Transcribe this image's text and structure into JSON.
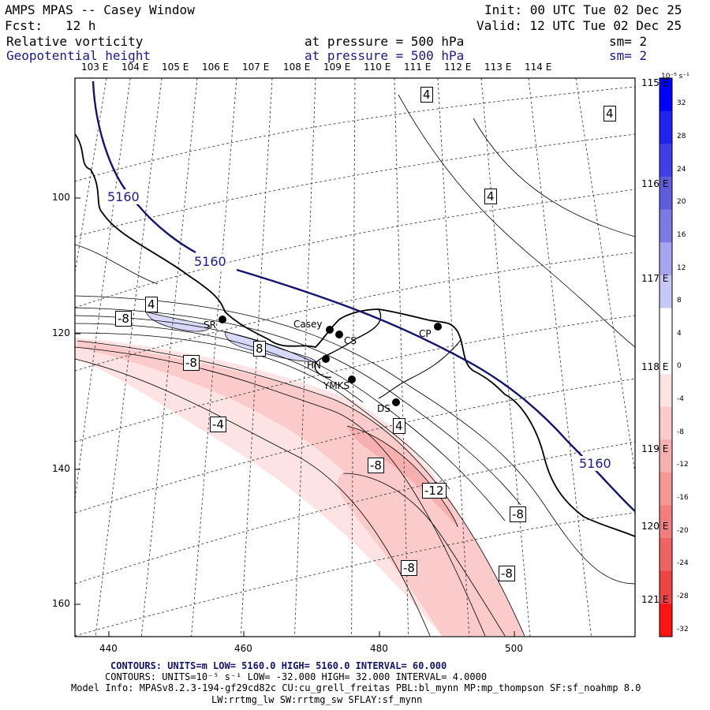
{
  "header": {
    "app_title": "AMPS MPAS -- Casey Window",
    "init": "Init: 00 UTC Tue 02 Dec 25",
    "fcst_label": "Fcst:",
    "fcst_value": "12 h",
    "valid": "Valid: 12 UTC Tue 02 Dec 25",
    "field1": "Relative vorticity",
    "field1_level": "at pressure =  500 hPa",
    "field1_sm": "sm= 2",
    "field2": "Geopotential height",
    "field2_level": "at pressure =  500 hPa",
    "field2_sm": "sm= 2"
  },
  "lon_top": [
    "103 E",
    "104 E",
    "105 E",
    "106 E",
    "107 E",
    "108 E",
    "109 E",
    "110 E",
    "111 E",
    "112 E",
    "113 E",
    "114 E"
  ],
  "lon_right": [
    "115 E",
    "116 E",
    "117 E",
    "118 E",
    "119 E",
    "120 E",
    "121 E"
  ],
  "y_ticks": [
    "100",
    "120",
    "140",
    "160"
  ],
  "x_ticks": [
    "440",
    "460",
    "480",
    "500"
  ],
  "stations": [
    "Casey",
    "CS",
    "CP",
    "SR",
    "HN",
    "YMKS",
    "DS"
  ],
  "contour_labels": {
    "height": [
      "5160",
      "5160",
      "5160"
    ],
    "vort": [
      "4",
      "4",
      "4",
      "4",
      "4",
      "-8",
      "8",
      "-8",
      "-4",
      "-8",
      "-12",
      "-8",
      "-8"
    ]
  },
  "colorbar": {
    "unit": "10⁻⁵ s⁻¹",
    "labels": [
      "32",
      "28",
      "24",
      "20",
      "16",
      "12",
      "8",
      "4",
      "0",
      "-4",
      "-8",
      "-12",
      "-16",
      "-20",
      "-24",
      "-28",
      "-32"
    ],
    "colors": [
      "#0000ff",
      "#2222f0",
      "#3f3fe6",
      "#5c5cdd",
      "#7a7ae2",
      "#a4a4ef",
      "#c8c8f6",
      "#ffffff",
      "#ffffff",
      "#fde3e3",
      "#fbcaca",
      "#f7b0b0",
      "#f59797",
      "#f27e7e",
      "#ef6363",
      "#ee4444",
      "#ff1414"
    ]
  },
  "footer": {
    "line1_contours": "CONTOURS:  UNITS=m  LOW=  5160.0       HIGH=  5160.0       INTERVAL=  60.000",
    "line2_contours": "CONTOURS:  UNITS=10⁻⁵ s⁻¹  LOW= -32.000       HIGH=  32.000      INTERVAL=   4.0000",
    "model_info": "Model Info: MPASv8.2.3-194-gf29cd82c CU:cu_grell_freitas PBL:bl_mynn MP:mp_thompson SF:sf_noahmp 8.0",
    "model_info2": "LW:rrtmg_lw SW:rrtmg_sw SFLAY:sf_mynn"
  }
}
